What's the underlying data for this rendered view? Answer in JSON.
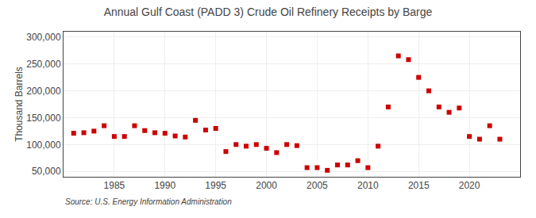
{
  "chart_data": {
    "type": "scatter",
    "title": "Annual Gulf Coast (PADD 3) Crude Oil Refinery Receipts by Barge",
    "ylabel": "Thousand Barrels",
    "annotations": [
      "Source: U.S. Energy Information Administration"
    ],
    "x": [
      1981,
      1982,
      1983,
      1984,
      1985,
      1986,
      1987,
      1988,
      1989,
      1990,
      1991,
      1992,
      1993,
      1994,
      1995,
      1996,
      1997,
      1998,
      1999,
      2000,
      2001,
      2002,
      2003,
      2004,
      2005,
      2006,
      2007,
      2008,
      2009,
      2010,
      2011,
      2012,
      2013,
      2014,
      2015,
      2016,
      2017,
      2018,
      2019,
      2020,
      2021,
      2022,
      2023
    ],
    "values": [
      121000,
      122000,
      125000,
      135000,
      115000,
      115000,
      135000,
      126000,
      122000,
      121000,
      116000,
      114000,
      145000,
      127000,
      130000,
      87000,
      100000,
      97000,
      100000,
      93000,
      85000,
      100000,
      98000,
      57000,
      57000,
      52000,
      62000,
      62000,
      70000,
      57000,
      97000,
      170000,
      265000,
      258000,
      225000,
      200000,
      170000,
      160000,
      168000,
      115000,
      110000,
      135000,
      110000
    ],
    "color": "#cc0000",
    "marker": "square",
    "xlim": [
      1980,
      2025
    ],
    "xticks": [
      1985,
      1990,
      1995,
      2000,
      2005,
      2010,
      2015,
      2020
    ],
    "ylim": [
      40000,
      310000
    ],
    "yticks": [
      {
        "value": 50000,
        "label": "50,000"
      },
      {
        "value": 100000,
        "label": "100,000"
      },
      {
        "value": 150000,
        "label": "150,000"
      },
      {
        "value": 200000,
        "label": "200,000"
      },
      {
        "value": 250000,
        "label": "250,000"
      },
      {
        "value": 300000,
        "label": "300,000"
      }
    ],
    "grid": true
  }
}
